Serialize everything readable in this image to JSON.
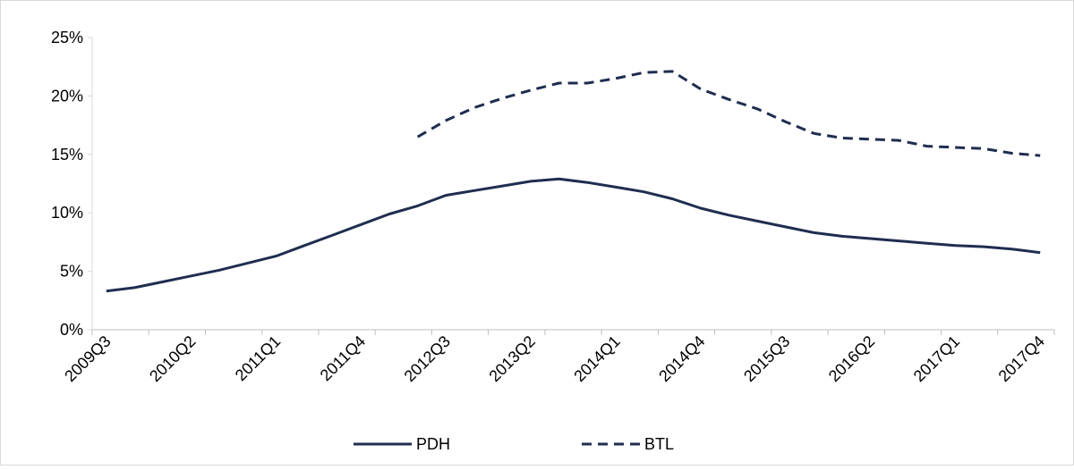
{
  "chart_data": {
    "type": "line",
    "categories": [
      "2009Q3",
      null,
      null,
      "2010Q2",
      null,
      null,
      "2011Q1",
      null,
      null,
      "2011Q4",
      null,
      null,
      "2012Q3",
      null,
      null,
      "2013Q2",
      null,
      null,
      "2014Q1",
      null,
      null,
      "2014Q4",
      null,
      null,
      "2015Q3",
      null,
      null,
      "2016Q2",
      null,
      null,
      "2017Q1",
      null,
      null,
      "2017Q4"
    ],
    "series": [
      {
        "name": "PDH",
        "color": "#1f2d4f",
        "dash": false,
        "values": [
          3.3,
          3.6,
          4.1,
          4.6,
          5.1,
          5.7,
          6.3,
          7.2,
          8.1,
          9.0,
          9.9,
          10.6,
          11.5,
          11.9,
          12.3,
          12.7,
          12.9,
          12.6,
          12.2,
          11.8,
          11.2,
          10.4,
          9.8,
          9.3,
          8.8,
          8.3,
          8.0,
          7.8,
          7.6,
          7.4,
          7.2,
          7.1,
          6.9,
          6.6
        ]
      },
      {
        "name": "BTL",
        "color": "#1f2d4f",
        "dash": true,
        "values": [
          null,
          null,
          null,
          null,
          null,
          null,
          null,
          null,
          null,
          null,
          null,
          16.5,
          17.9,
          19.0,
          19.8,
          20.5,
          21.1,
          21.1,
          21.5,
          22.0,
          22.1,
          20.6,
          19.7,
          18.9,
          17.8,
          16.8,
          16.4,
          16.3,
          16.2,
          15.7,
          15.6,
          15.5,
          15.1,
          14.9
        ]
      }
    ],
    "ylim": [
      0,
      25
    ],
    "yticks": [
      {
        "value": 0,
        "label": "0%"
      },
      {
        "value": 5,
        "label": "5%"
      },
      {
        "value": 10,
        "label": "10%"
      },
      {
        "value": 15,
        "label": "15%"
      },
      {
        "value": 20,
        "label": "20%"
      },
      {
        "value": 25,
        "label": "25%"
      }
    ],
    "grid": false,
    "legend": "bottom"
  }
}
